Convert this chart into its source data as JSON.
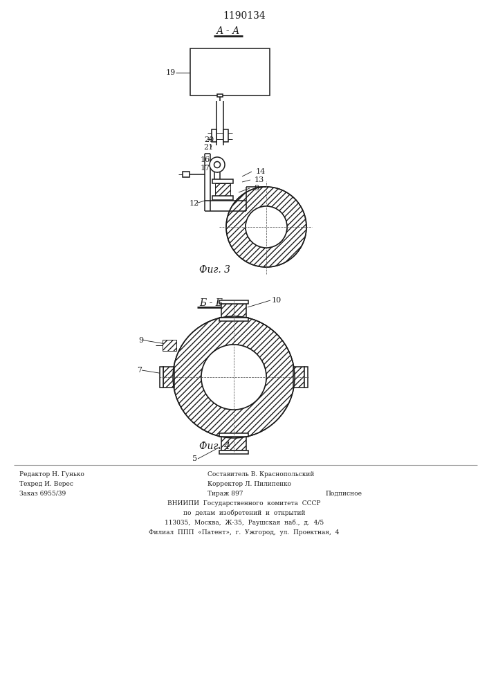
{
  "title": "1190134",
  "fig3_label": "А - А",
  "fig3_caption": "Фиг. 3",
  "fig4_label": "Б - Б",
  "fig4_caption": "Фиг. 4",
  "line_color": "#1a1a1a"
}
